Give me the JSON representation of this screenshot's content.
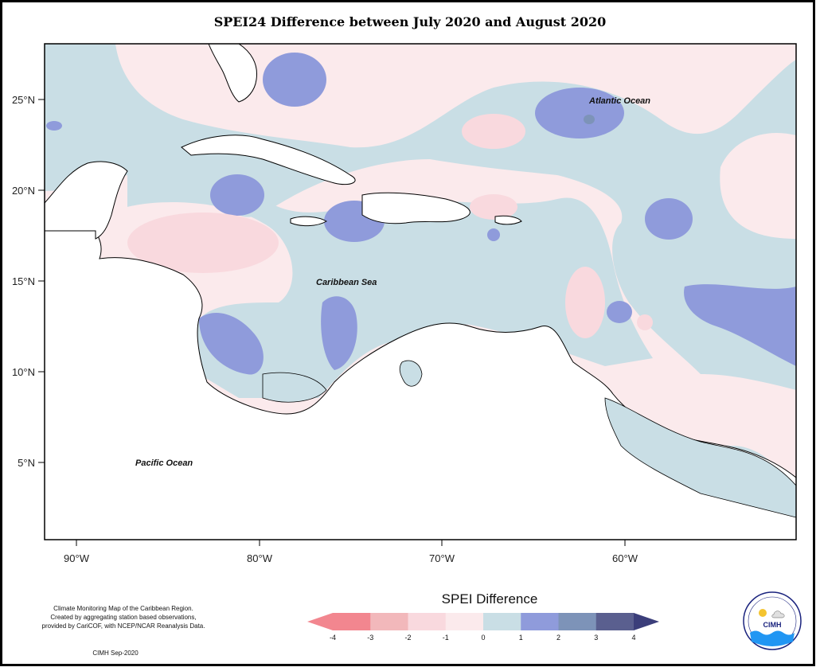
{
  "title": "SPEI24 Difference between July 2020 and August 2020",
  "map": {
    "x_ticks": [
      "90°W",
      "80°W",
      "70°W",
      "60°W"
    ],
    "y_ticks": [
      "25°N",
      "20°N",
      "15°N",
      "10°N",
      "5°N"
    ],
    "labels": {
      "atlantic": "Atlantic Ocean",
      "caribbean": "Caribbean Sea",
      "pacific": "Pacific Ocean"
    }
  },
  "legend": {
    "title": "SPEI Difference",
    "ticks": [
      "-4",
      "-3",
      "-2",
      "-1",
      "0",
      "1",
      "2",
      "3",
      "4"
    ],
    "colors": [
      "#f2868f",
      "#f2b8bb",
      "#f9d9de",
      "#fbeaec",
      "#c9dee5",
      "#8f9bdb",
      "#7d93b8",
      "#5a5f8f",
      "#3b3e7a"
    ]
  },
  "notes": {
    "line1": "Climate Monitoring Map of the Caribbean Region.",
    "line2": "Created by aggregating station based observations,",
    "line3": "provided by CariCOF, with NCEP/NCAR Reanalysis Data.",
    "footer": "CIMH Sep-2020"
  },
  "logo": {
    "name": "CIMH"
  }
}
